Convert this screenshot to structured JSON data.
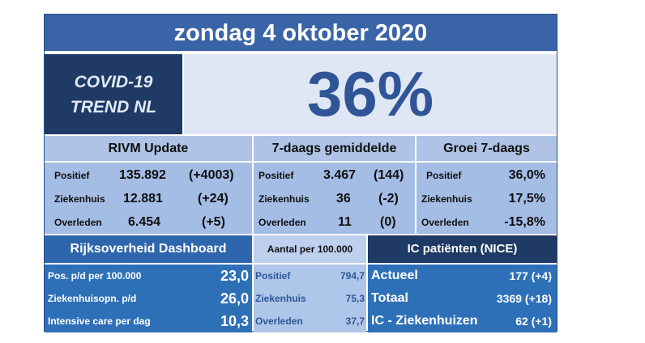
{
  "title": "zondag 4 oktober 2020",
  "brand": {
    "line1": "COVID-19",
    "line2": "TREND NL"
  },
  "trend_pct": "36%",
  "rivm": {
    "header": "RIVM Update",
    "rows": [
      {
        "label": "Positief",
        "value": "135.892",
        "delta": "(+4003)"
      },
      {
        "label": "Ziekenhuis",
        "value": "12.881",
        "delta": "(+24)"
      },
      {
        "label": "Overleden",
        "value": "6.454",
        "delta": "(+5)"
      }
    ]
  },
  "avg7": {
    "header": "7-daags gemiddelde",
    "rows": [
      {
        "label": "Positief",
        "value": "3.467",
        "delta": "(144)"
      },
      {
        "label": "Ziekenhuis",
        "value": "36",
        "delta": "(-2)"
      },
      {
        "label": "Overleden",
        "value": "11",
        "delta": "(0)"
      }
    ]
  },
  "growth7": {
    "header": "Groei 7-daags",
    "rows": [
      {
        "label": "Positief",
        "value": "36,0%"
      },
      {
        "label": "Ziekenhuis",
        "value": "17,5%"
      },
      {
        "label": "Overleden",
        "value": "-15,8%"
      }
    ]
  },
  "dashboard": {
    "header": "Rijksoverheid Dashboard",
    "rows": [
      {
        "label": "Pos. p/d per 100.000",
        "value": "23,0"
      },
      {
        "label": "Ziekenhuisopn.  p/d",
        "value": "26,0"
      },
      {
        "label": "Intensive care per dag",
        "value": "10,3"
      }
    ]
  },
  "per100k": {
    "header": "Aantal per 100.000",
    "rows": [
      {
        "label": "Positief",
        "value": "794,7"
      },
      {
        "label": "Ziekenhuis",
        "value": "75,3"
      },
      {
        "label": "Overleden",
        "value": "37,7"
      }
    ]
  },
  "ic": {
    "header": "IC patiënten (NICE)",
    "rows": [
      {
        "label": "Actueel",
        "value": "177 (+4)"
      },
      {
        "label": "Totaal",
        "value": "3369 (+18)"
      },
      {
        "label": "IC - Ziekenhuizen",
        "value": "62 (+1)"
      }
    ]
  }
}
